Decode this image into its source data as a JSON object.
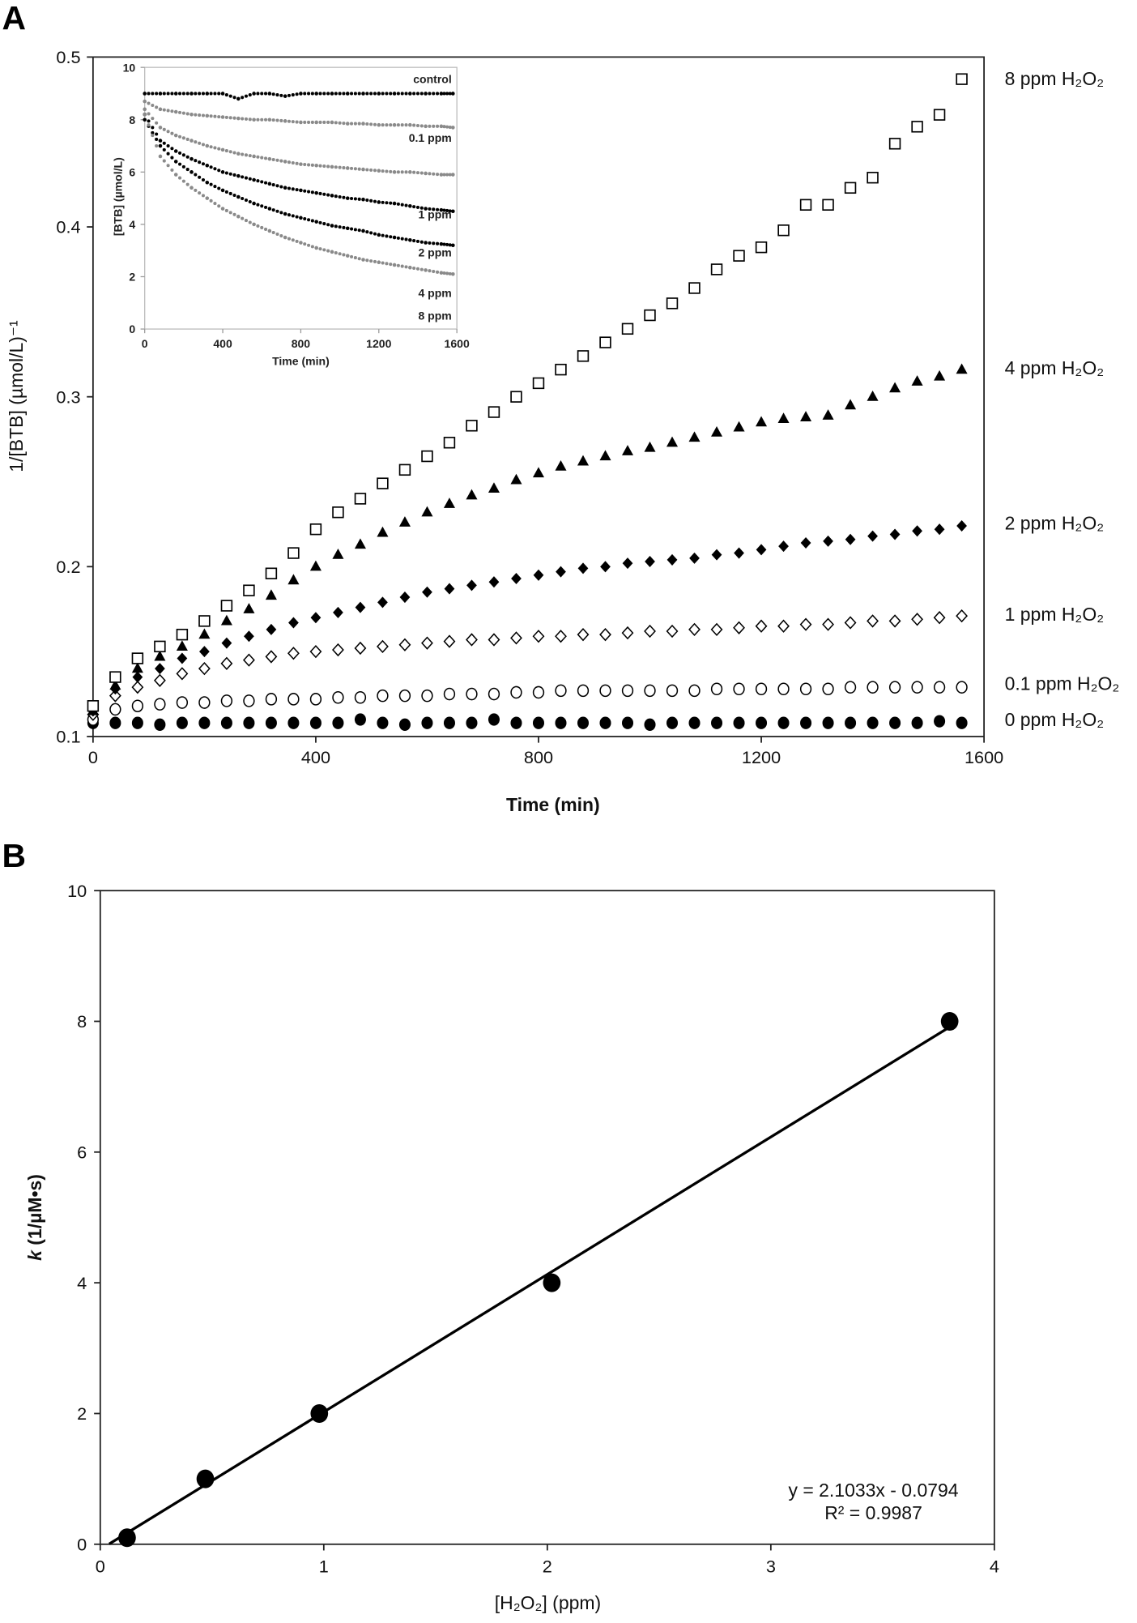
{
  "panel_labels": {
    "a": "A",
    "b": "B"
  },
  "chart_data": [
    {
      "type": "scatter",
      "panel": "A",
      "xlabel": "Time (min)",
      "ylabel": "1/[BTB] (µmol/L)⁻¹",
      "xlim": [
        0,
        1600
      ],
      "ylim": [
        0.1,
        0.5
      ],
      "xticks": [
        "0",
        "400",
        "800",
        "1200",
        "1600"
      ],
      "yticks": [
        "0.1",
        "0.2",
        "0.3",
        "0.4",
        "0.5"
      ],
      "grid": false,
      "x": [
        0,
        40,
        80,
        120,
        160,
        200,
        240,
        280,
        320,
        360,
        400,
        440,
        480,
        520,
        560,
        600,
        640,
        680,
        720,
        760,
        800,
        840,
        880,
        920,
        960,
        1000,
        1040,
        1080,
        1120,
        1160,
        1200,
        1240,
        1280,
        1320,
        1360,
        1400,
        1440,
        1480,
        1520,
        1560
      ],
      "series": [
        {
          "name": "8 ppm H₂O₂",
          "marker": "open-square",
          "values": [
            0.118,
            0.135,
            0.146,
            0.153,
            0.16,
            0.168,
            0.177,
            0.186,
            0.196,
            0.208,
            0.222,
            0.232,
            0.24,
            0.249,
            0.257,
            0.265,
            0.273,
            0.283,
            0.291,
            0.3,
            0.308,
            0.316,
            0.324,
            0.332,
            0.34,
            0.348,
            0.355,
            0.364,
            0.375,
            0.383,
            0.388,
            0.398,
            0.413,
            0.413,
            0.423,
            0.429,
            0.449,
            0.459,
            0.466,
            0.487
          ]
        },
        {
          "name": "4 ppm H₂O₂",
          "marker": "filled-triangle",
          "values": [
            0.115,
            0.13,
            0.14,
            0.147,
            0.153,
            0.16,
            0.168,
            0.175,
            0.183,
            0.192,
            0.2,
            0.207,
            0.213,
            0.22,
            0.226,
            0.232,
            0.237,
            0.242,
            0.246,
            0.251,
            0.255,
            0.259,
            0.262,
            0.265,
            0.268,
            0.27,
            0.273,
            0.276,
            0.279,
            0.282,
            0.285,
            0.287,
            0.288,
            0.289,
            0.295,
            0.3,
            0.305,
            0.309,
            0.312,
            0.316
          ]
        },
        {
          "name": "2 ppm H₂O₂",
          "marker": "filled-diamond",
          "values": [
            0.115,
            0.128,
            0.135,
            0.14,
            0.146,
            0.15,
            0.155,
            0.159,
            0.163,
            0.167,
            0.17,
            0.173,
            0.176,
            0.179,
            0.182,
            0.185,
            0.187,
            0.189,
            0.191,
            0.193,
            0.195,
            0.197,
            0.199,
            0.2,
            0.202,
            0.203,
            0.204,
            0.205,
            0.207,
            0.208,
            0.21,
            0.212,
            0.214,
            0.215,
            0.216,
            0.218,
            0.219,
            0.221,
            0.222,
            0.224
          ]
        },
        {
          "name": "1 ppm H₂O₂",
          "marker": "open-diamond",
          "values": [
            0.113,
            0.124,
            0.129,
            0.133,
            0.137,
            0.14,
            0.143,
            0.145,
            0.147,
            0.149,
            0.15,
            0.151,
            0.152,
            0.153,
            0.154,
            0.155,
            0.156,
            0.157,
            0.157,
            0.158,
            0.159,
            0.159,
            0.16,
            0.16,
            0.161,
            0.162,
            0.162,
            0.163,
            0.163,
            0.164,
            0.165,
            0.165,
            0.166,
            0.166,
            0.167,
            0.168,
            0.168,
            0.169,
            0.17,
            0.171
          ]
        },
        {
          "name": "0.1 ppm H₂O₂",
          "marker": "open-circle",
          "values": [
            0.11,
            0.116,
            0.118,
            0.119,
            0.12,
            0.12,
            0.121,
            0.121,
            0.122,
            0.122,
            0.122,
            0.123,
            0.123,
            0.124,
            0.124,
            0.124,
            0.125,
            0.125,
            0.125,
            0.126,
            0.126,
            0.127,
            0.127,
            0.127,
            0.127,
            0.127,
            0.127,
            0.127,
            0.128,
            0.128,
            0.128,
            0.128,
            0.128,
            0.128,
            0.129,
            0.129,
            0.129,
            0.129,
            0.129,
            0.129
          ]
        },
        {
          "name": "0 ppm H₂O₂",
          "marker": "filled-circle",
          "values": [
            0.108,
            0.108,
            0.108,
            0.107,
            0.108,
            0.108,
            0.108,
            0.108,
            0.108,
            0.108,
            0.108,
            0.108,
            0.11,
            0.108,
            0.107,
            0.108,
            0.108,
            0.108,
            0.11,
            0.108,
            0.108,
            0.108,
            0.108,
            0.108,
            0.108,
            0.107,
            0.108,
            0.108,
            0.108,
            0.108,
            0.108,
            0.108,
            0.108,
            0.108,
            0.108,
            0.108,
            0.108,
            0.108,
            0.109,
            0.108
          ]
        }
      ],
      "inset": {
        "type": "scatter",
        "xlabel": "Time (min)",
        "ylabel": "[BTB] (µmol/L)",
        "xlim": [
          0,
          1600
        ],
        "ylim": [
          0,
          10
        ],
        "xticks": [
          "0",
          "400",
          "800",
          "1200",
          "1600"
        ],
        "yticks": [
          "0",
          "2",
          "4",
          "6",
          "8",
          "10"
        ],
        "x": [
          0,
          80,
          160,
          240,
          320,
          400,
          480,
          560,
          640,
          720,
          800,
          880,
          960,
          1040,
          1120,
          1200,
          1280,
          1360,
          1440,
          1520,
          1580
        ],
        "series": [
          {
            "name": "control",
            "color": "#000000",
            "values": [
              9.0,
              9.0,
              9.0,
              9.0,
              9.0,
              9.0,
              8.8,
              9.0,
              9.0,
              8.9,
              9.0,
              9.0,
              9.0,
              9.0,
              9.0,
              9.0,
              9.0,
              9.0,
              9.0,
              9.0,
              9.0
            ]
          },
          {
            "name": "0.1 ppm",
            "color": "#8a8a8a",
            "values": [
              8.7,
              8.4,
              8.3,
              8.2,
              8.15,
              8.1,
              8.05,
              8.0,
              8.0,
              7.95,
              7.9,
              7.9,
              7.9,
              7.85,
              7.85,
              7.8,
              7.8,
              7.8,
              7.75,
              7.75,
              7.7
            ]
          },
          {
            "name": "1 ppm",
            "color": "#8a8a8a",
            "values": [
              8.4,
              7.7,
              7.4,
              7.2,
              7.0,
              6.85,
              6.7,
              6.6,
              6.5,
              6.4,
              6.3,
              6.25,
              6.2,
              6.15,
              6.1,
              6.05,
              6.0,
              6.0,
              5.95,
              5.9,
              5.9
            ]
          },
          {
            "name": "2 ppm",
            "color": "#000000",
            "values": [
              8.2,
              7.2,
              6.8,
              6.5,
              6.25,
              6.0,
              5.85,
              5.7,
              5.55,
              5.4,
              5.3,
              5.2,
              5.1,
              5.0,
              4.95,
              4.85,
              4.8,
              4.7,
              4.6,
              4.55,
              4.5
            ]
          },
          {
            "name": "4 ppm",
            "color": "#000000",
            "values": [
              8.0,
              7.0,
              6.4,
              6.0,
              5.6,
              5.3,
              5.05,
              4.8,
              4.6,
              4.4,
              4.25,
              4.1,
              3.95,
              3.85,
              3.75,
              3.6,
              3.5,
              3.4,
              3.3,
              3.25,
              3.2
            ]
          },
          {
            "name": "8 ppm",
            "color": "#8a8a8a",
            "values": [
              8.2,
              6.6,
              5.9,
              5.4,
              5.0,
              4.6,
              4.3,
              4.0,
              3.75,
              3.5,
              3.3,
              3.1,
              2.95,
              2.8,
              2.65,
              2.55,
              2.45,
              2.35,
              2.25,
              2.15,
              2.1
            ]
          }
        ]
      }
    },
    {
      "type": "scatter",
      "panel": "B",
      "xlabel": "[H₂O₂] (ppm)",
      "ylabel_k": "k",
      "ylabel_rest": " (1/µM•s)",
      "xlim": [
        0,
        4
      ],
      "ylim": [
        0,
        10
      ],
      "xticks": [
        "0",
        "1",
        "2",
        "3",
        "4"
      ],
      "yticks": [
        "0",
        "2",
        "4",
        "6",
        "8",
        "10"
      ],
      "grid": false,
      "points": {
        "x": [
          0.12,
          0.47,
          0.98,
          2.02,
          3.8
        ],
        "y": [
          0.1,
          1.0,
          2.0,
          4.0,
          8.0
        ]
      },
      "trendline": {
        "slope": 2.1033,
        "intercept": -0.0794,
        "x_range": [
          0.04,
          3.8
        ]
      },
      "equation": "y = 2.1033x - 0.0794",
      "r_squared": "R² = 0.9987"
    }
  ]
}
